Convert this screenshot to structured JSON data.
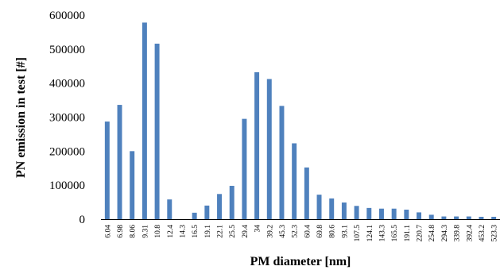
{
  "chart_data": {
    "type": "bar",
    "title": "",
    "xlabel": "PM diameter [nm]",
    "ylabel": "PN emission in test [#]",
    "ylim": [
      0,
      600000
    ],
    "yticks": [
      "0",
      "100000",
      "200000",
      "300000",
      "400000",
      "500000",
      "600000"
    ],
    "grid": false,
    "legend": "none",
    "bar_color": "#4f81bd",
    "categories": [
      "6.04",
      "6.98",
      "8.06",
      "9.31",
      "10.8",
      "12.4",
      "14.3",
      "16.5",
      "19.1",
      "22.1",
      "25.5",
      "29.4",
      "34",
      "39.2",
      "45.3",
      "52.3",
      "60.4",
      "69.8",
      "80.6",
      "93.1",
      "107.5",
      "124.1",
      "143.3",
      "165.5",
      "191.1",
      "220.7",
      "254.8",
      "294.3",
      "339.8",
      "392.4",
      "453.2",
      "523.3"
    ],
    "values": [
      287000,
      336000,
      200000,
      578000,
      516000,
      58000,
      0,
      19000,
      40000,
      74000,
      98000,
      295000,
      432000,
      412000,
      333000,
      223000,
      152000,
      72000,
      61000,
      49000,
      39000,
      33000,
      31000,
      31000,
      28000,
      20000,
      13000,
      8000,
      8000,
      8000,
      7000,
      7000
    ]
  }
}
